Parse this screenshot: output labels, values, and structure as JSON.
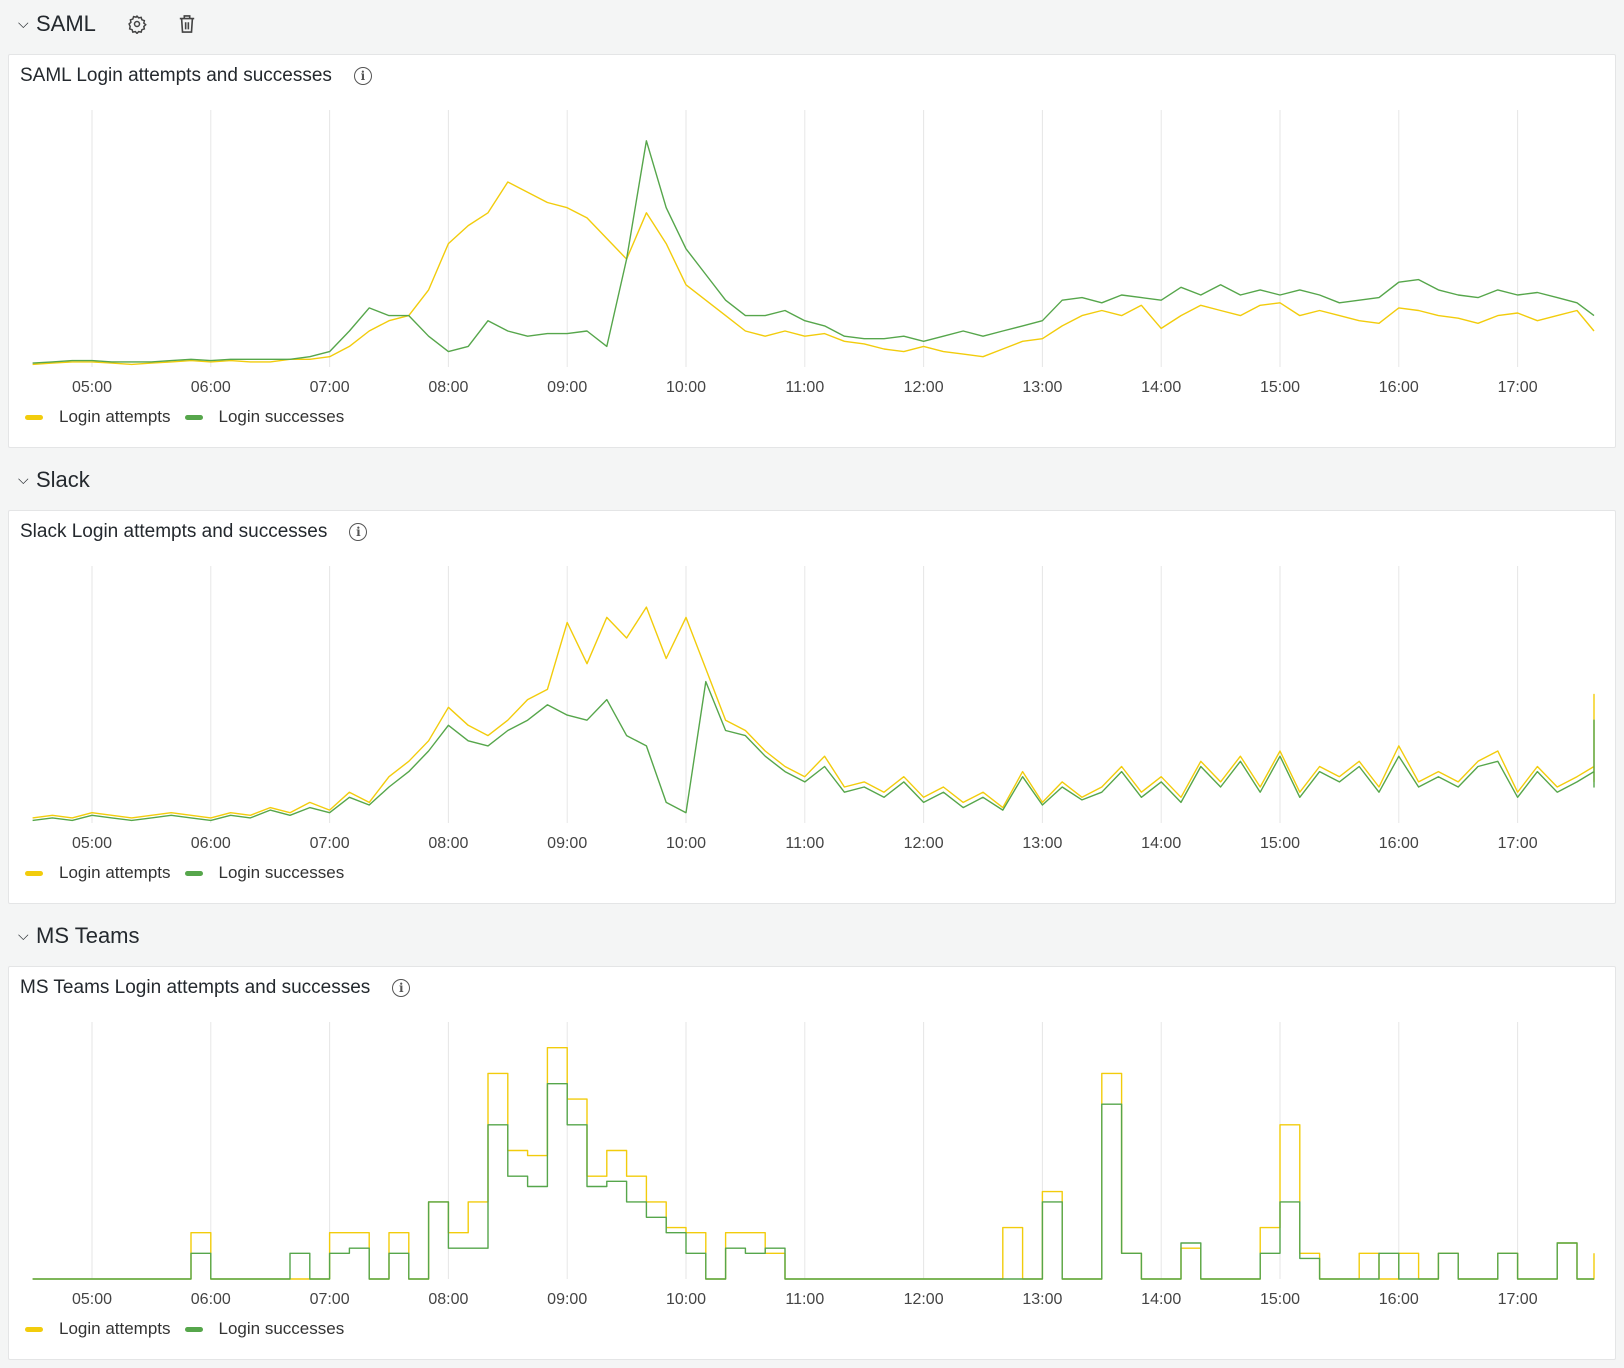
{
  "colors": {
    "attempts": "#F2CC0C",
    "successes": "#56A64B",
    "grid": "#e6e6e6"
  },
  "rows": [
    {
      "title": "SAML",
      "icons": [
        "gear-icon",
        "trash-icon"
      ]
    },
    {
      "title": "Slack"
    },
    {
      "title": "MS Teams"
    }
  ],
  "chart_data": [
    {
      "type": "line",
      "title": "SAML Login attempts and successes",
      "x_start": "04:30",
      "interval_min": 10,
      "x_ticks": [
        "05:00",
        "06:00",
        "07:00",
        "08:00",
        "09:00",
        "10:00",
        "11:00",
        "12:00",
        "13:00",
        "14:00",
        "15:00",
        "16:00",
        "17:00"
      ],
      "ylim": [
        0,
        100
      ],
      "grid": "vertical",
      "legend_position": "bottom-left",
      "series": [
        {
          "name": "Login attempts",
          "color": "#F2CC0C",
          "values": [
            1,
            1.5,
            2,
            2,
            1.5,
            1,
            1.5,
            2,
            2.5,
            2,
            2.5,
            2,
            2,
            3,
            3,
            4,
            8,
            14,
            18,
            20,
            30,
            48,
            55,
            60,
            72,
            68,
            64,
            62,
            58,
            50,
            42,
            60,
            48,
            32,
            26,
            20,
            14,
            12,
            14,
            12,
            13,
            10,
            9,
            7,
            6,
            8,
            6,
            5,
            4,
            7,
            10,
            11,
            16,
            20,
            22,
            20,
            24,
            15,
            20,
            24,
            22,
            20,
            24,
            25,
            20,
            22,
            20,
            18,
            17,
            23,
            22,
            20,
            19,
            17,
            20,
            21,
            18,
            20,
            22,
            14
          ]
        },
        {
          "name": "Login successes",
          "color": "#56A64B",
          "values": [
            1.5,
            2,
            2.5,
            2.5,
            2,
            2,
            2,
            2.5,
            3,
            2.5,
            3,
            3,
            3,
            3,
            4,
            6,
            14,
            23,
            20,
            20,
            12,
            6,
            8,
            18,
            14,
            12,
            13,
            13,
            14,
            8,
            42,
            88,
            62,
            46,
            36,
            26,
            20,
            20,
            22,
            18,
            16,
            12,
            11,
            11,
            12,
            10,
            12,
            14,
            12,
            14,
            16,
            18,
            26,
            27,
            25,
            28,
            27,
            26,
            31,
            28,
            32,
            28,
            30,
            28,
            30,
            28,
            25,
            26,
            27,
            33,
            34,
            30,
            28,
            27,
            30,
            28,
            29,
            27,
            25,
            20
          ]
        }
      ]
    },
    {
      "type": "line",
      "title": "Slack Login attempts and successes",
      "x_start": "04:30",
      "interval_min": 10,
      "x_ticks": [
        "05:00",
        "06:00",
        "07:00",
        "08:00",
        "09:00",
        "10:00",
        "11:00",
        "12:00",
        "13:00",
        "14:00",
        "15:00",
        "16:00",
        "17:00"
      ],
      "ylim": [
        0,
        100
      ],
      "grid": "vertical",
      "legend_position": "bottom-left",
      "series": [
        {
          "name": "Login attempts",
          "color": "#F2CC0C",
          "values": [
            2,
            3,
            2,
            4,
            3,
            2,
            3,
            4,
            3,
            2,
            4,
            3,
            6,
            4,
            8,
            5,
            12,
            8,
            18,
            24,
            32,
            45,
            38,
            34,
            40,
            48,
            52,
            78,
            62,
            80,
            72,
            84,
            64,
            80,
            60,
            40,
            36,
            28,
            22,
            18,
            26,
            14,
            16,
            12,
            18,
            10,
            14,
            8,
            12,
            6,
            20,
            8,
            16,
            10,
            14,
            22,
            12,
            18,
            10,
            24,
            16,
            26,
            14,
            28,
            12,
            22,
            18,
            24,
            14,
            30,
            16,
            20,
            16,
            24,
            28,
            12,
            22,
            14,
            18,
            22,
            50,
            26,
            18,
            22,
            16,
            20,
            18,
            24,
            30
          ]
        },
        {
          "name": "Login successes",
          "color": "#56A64B",
          "values": [
            1,
            2,
            1,
            3,
            2,
            1,
            2,
            3,
            2,
            1,
            3,
            2,
            5,
            3,
            6,
            4,
            10,
            7,
            14,
            20,
            28,
            38,
            32,
            30,
            36,
            40,
            46,
            42,
            40,
            48,
            34,
            30,
            8,
            4,
            55,
            36,
            34,
            26,
            20,
            16,
            22,
            12,
            14,
            10,
            16,
            8,
            12,
            6,
            10,
            5,
            18,
            7,
            14,
            9,
            12,
            20,
            10,
            16,
            8,
            22,
            14,
            24,
            12,
            26,
            10,
            20,
            16,
            22,
            12,
            26,
            14,
            18,
            14,
            22,
            24,
            10,
            20,
            12,
            16,
            20,
            40,
            24,
            16,
            20,
            14,
            18,
            16,
            20,
            28
          ]
        }
      ]
    },
    {
      "type": "line",
      "title": "MS Teams Login attempts and successes",
      "x_start": "04:30",
      "interval_min": 10,
      "x_ticks": [
        "05:00",
        "06:00",
        "07:00",
        "08:00",
        "09:00",
        "10:00",
        "11:00",
        "12:00",
        "13:00",
        "14:00",
        "15:00",
        "16:00",
        "17:00"
      ],
      "ylim": [
        0,
        100
      ],
      "grid": "vertical",
      "legend_position": "bottom-left",
      "series": [
        {
          "name": "Login attempts",
          "color": "#F2CC0C",
          "values": [
            0,
            0,
            0,
            0,
            0,
            0,
            0,
            0,
            18,
            0,
            0,
            0,
            0,
            0,
            0,
            18,
            18,
            0,
            18,
            0,
            30,
            18,
            30,
            80,
            50,
            48,
            90,
            70,
            40,
            50,
            40,
            30,
            20,
            18,
            0,
            18,
            18,
            10,
            0,
            0,
            0,
            0,
            0,
            0,
            0,
            0,
            0,
            0,
            0,
            20,
            0,
            34,
            0,
            0,
            80,
            10,
            0,
            0,
            12,
            0,
            0,
            0,
            20,
            60,
            10,
            0,
            0,
            10,
            0,
            10,
            0,
            10,
            0,
            0,
            10,
            0,
            0,
            14,
            0,
            0,
            0,
            0,
            10
          ]
        },
        {
          "name": "Login successes",
          "color": "#56A64B",
          "values": [
            0,
            0,
            0,
            0,
            0,
            0,
            0,
            0,
            10,
            0,
            0,
            0,
            0,
            10,
            0,
            10,
            12,
            0,
            10,
            0,
            30,
            12,
            12,
            60,
            40,
            36,
            76,
            60,
            36,
            38,
            30,
            24,
            18,
            10,
            0,
            12,
            10,
            12,
            0,
            0,
            0,
            0,
            0,
            0,
            0,
            0,
            0,
            0,
            0,
            0,
            0,
            30,
            0,
            0,
            68,
            10,
            0,
            0,
            14,
            0,
            0,
            0,
            10,
            30,
            8,
            0,
            0,
            0,
            10,
            0,
            0,
            10,
            0,
            0,
            10,
            0,
            0,
            14,
            0,
            0,
            0,
            0,
            0
          ]
        }
      ]
    }
  ]
}
